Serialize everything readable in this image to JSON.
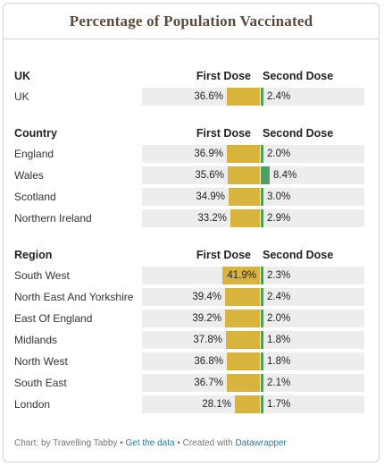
{
  "chart_data": {
    "type": "table",
    "title": "Percentage of Population Vaccinated",
    "columns": [
      "First Dose",
      "Second Dose"
    ],
    "sections": [
      {
        "name": "UK",
        "first_header": "First Dose",
        "second_header": "Second Dose",
        "rows": [
          {
            "label": "UK",
            "first": 36.6,
            "second": 2.4
          }
        ]
      },
      {
        "name": "Country",
        "first_header": "First Dose",
        "second_header": "Second Dose",
        "rows": [
          {
            "label": "England",
            "first": 36.9,
            "second": 2.0
          },
          {
            "label": "Wales",
            "first": 35.6,
            "second": 8.4
          },
          {
            "label": "Scotland",
            "first": 34.9,
            "second": 3.0
          },
          {
            "label": "Northern Ireland",
            "first": 33.2,
            "second": 2.9
          }
        ]
      },
      {
        "name": "Region",
        "first_header": "First Dose",
        "second_header": "Second Dose",
        "rows": [
          {
            "label": "South West",
            "first": 41.9,
            "second": 2.3
          },
          {
            "label": "North East And Yorkshire",
            "first": 39.4,
            "second": 2.4
          },
          {
            "label": "East Of England",
            "first": 39.2,
            "second": 2.0
          },
          {
            "label": "Midlands",
            "first": 37.8,
            "second": 1.8
          },
          {
            "label": "North West",
            "first": 36.8,
            "second": 1.8
          },
          {
            "label": "South East",
            "first": 36.7,
            "second": 2.1
          },
          {
            "label": "London",
            "first": 28.1,
            "second": 1.7
          }
        ]
      }
    ],
    "colors": {
      "first": "#d8b43d",
      "second": "#4f9e64",
      "track": "#ededed",
      "title": "#5b4a3a",
      "link": "#1d81a2"
    }
  },
  "footer": {
    "prefix": "Chart: by Travelling Tabby • ",
    "data_link": "Get the data",
    "middle": " • Created with ",
    "tool_link": "Datawrapper"
  }
}
